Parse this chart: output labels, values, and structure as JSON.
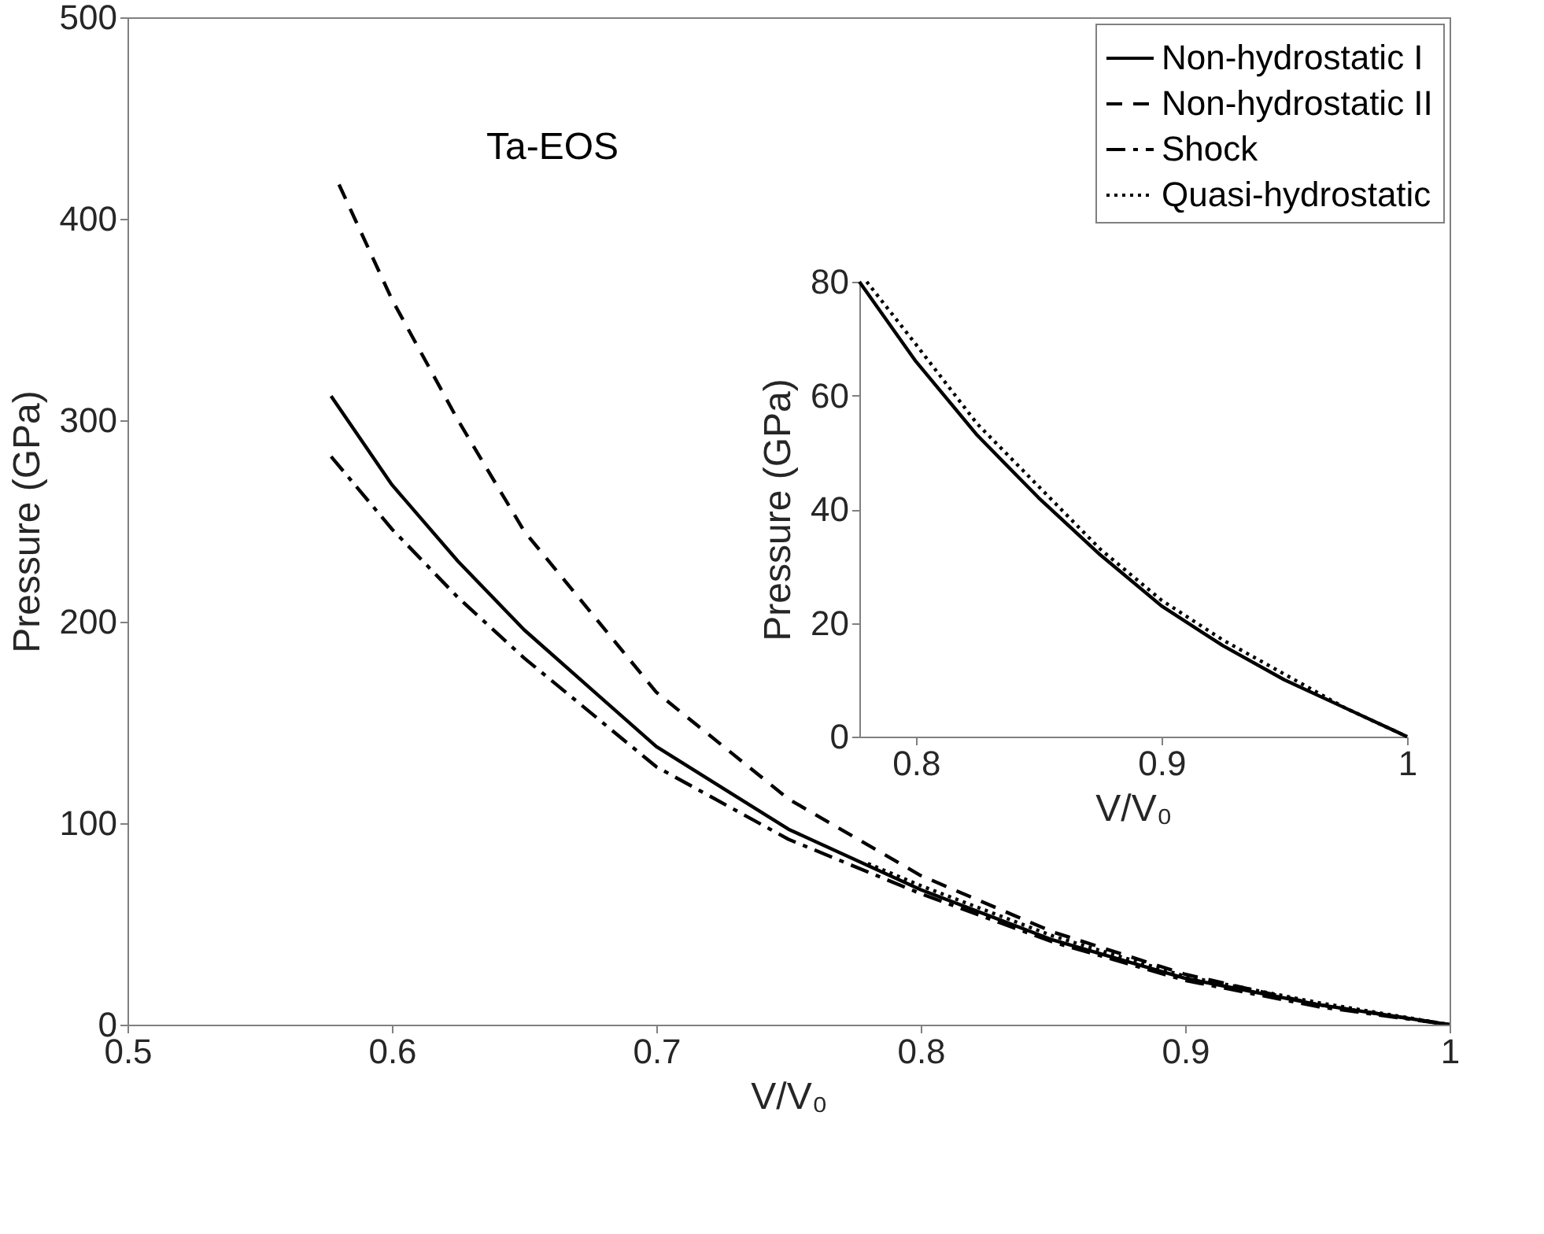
{
  "chart_data": [
    {
      "type": "line",
      "title": "Ta-EOS",
      "xlabel": "V/V₀",
      "ylabel": "Pressure (GPa)",
      "xlim": [
        0.5,
        1
      ],
      "ylim": [
        0,
        500
      ],
      "xticks": [
        0.5,
        0.6,
        0.7,
        0.8,
        0.9,
        1
      ],
      "yticks": [
        0,
        100,
        200,
        300,
        400,
        500
      ],
      "legend": "top right",
      "grid": false,
      "series": [
        {
          "name": "Non-hydrostatic I",
          "color": "#000000",
          "line_style": "solid",
          "x": [
            0.577,
            0.6,
            0.625,
            0.65,
            0.7,
            0.75,
            0.8,
            0.85,
            0.9,
            0.95,
            1.0
          ],
          "values": [
            312,
            268,
            230,
            196,
            138,
            97,
            67,
            42,
            23,
            10,
            0
          ]
        },
        {
          "name": "Non-hydrostatic II",
          "color": "#000000",
          "line_style": "dashed",
          "x": [
            0.58,
            0.6,
            0.625,
            0.65,
            0.7,
            0.75,
            0.8,
            0.85,
            0.9,
            0.95,
            1.0
          ],
          "values": [
            417,
            360,
            300,
            245,
            165,
            112,
            74,
            46,
            25,
            10,
            0
          ]
        },
        {
          "name": "Shock",
          "color": "#000000",
          "line_style": "dashdot",
          "x": [
            0.577,
            0.6,
            0.625,
            0.65,
            0.7,
            0.75,
            0.8,
            0.85,
            0.9,
            0.95,
            1.0
          ],
          "values": [
            282,
            246,
            212,
            182,
            128,
            92,
            65,
            41,
            22,
            9,
            0
          ]
        },
        {
          "name": "Quasi-hydrostatic",
          "color": "#000000",
          "line_style": "dotted",
          "x": [
            0.78,
            0.8,
            0.85,
            0.9,
            0.95,
            1.0
          ],
          "values": [
            80,
            69,
            44,
            24,
            11,
            0
          ]
        }
      ]
    },
    {
      "type": "line",
      "xlabel": "V/V₀",
      "ylabel": "Pressure (GPa)",
      "xlim": [
        0.777,
        1
      ],
      "ylim": [
        0,
        80
      ],
      "xticks": [
        0.8,
        0.9,
        1
      ],
      "yticks": [
        0,
        20,
        40,
        60,
        80
      ],
      "grid": false,
      "series": [
        {
          "color": "#000000",
          "line_style": "solid",
          "x": [
            0.777,
            0.8,
            0.825,
            0.85,
            0.875,
            0.9,
            0.925,
            0.95,
            0.975,
            1.0
          ],
          "values": [
            80,
            66,
            53,
            42,
            32,
            23,
            16,
            10,
            5,
            0
          ]
        },
        {
          "color": "#000000",
          "line_style": "dotted",
          "x": [
            0.78,
            0.8,
            0.825,
            0.85,
            0.875,
            0.9,
            0.925,
            0.95,
            0.975,
            1.0
          ],
          "values": [
            80,
            69,
            55,
            44,
            33,
            24,
            17,
            11,
            5,
            0
          ]
        }
      ]
    }
  ]
}
